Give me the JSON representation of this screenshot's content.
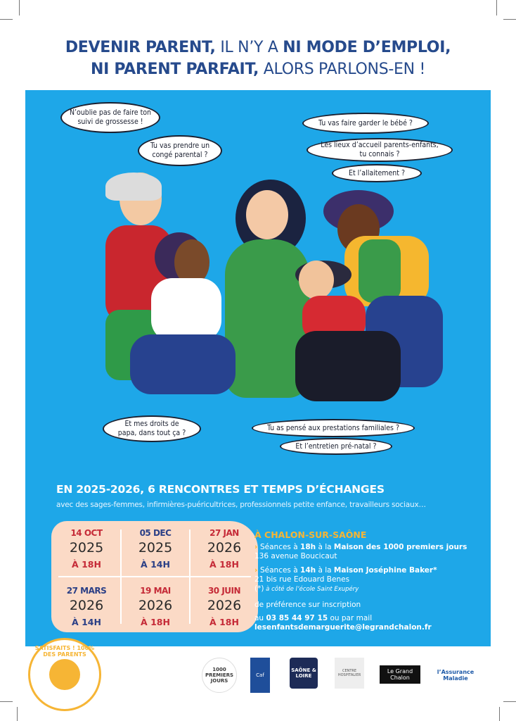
{
  "headline": {
    "line1_bold": "DEVENIR PARENT,",
    "line1_light": " IL N’Y A ",
    "line1_bold2": "NI MODE D’EMPLOI,",
    "line2_bold": "NI PARENT PARFAIT,",
    "line2_light": " ALORS PARLONS-EN !"
  },
  "colors": {
    "title": "#264a8c",
    "panel": "#1ea7e8",
    "accent": "#f6b535",
    "date_red": "#c52a37",
    "date_navy": "#2b3f86",
    "date_box": "#fbdac6"
  },
  "bubbles": [
    "N’oublie pas de faire ton suivi de grossesse !",
    "Tu vas prendre un congé parental ?",
    "Tu vas faire garder le bébé ?",
    "Les lieux d’accueil parents-enfants, tu connais ?",
    "Et l’allaitement ?",
    "Et mes droits de papa, dans tout ça ?",
    "Tu as pensé aux prestations familiales ?",
    "Et l’entretien pré-natal ?"
  ],
  "section": {
    "title": "EN 2025-2026, 6 RENCONTRES ET TEMPS D’ÉCHANGES",
    "subtitle": "avec des sages-femmes, infirmières-puéricultrices, professionnels petite enfance, travailleurs sociaux…"
  },
  "dates": [
    {
      "day": "14 OCT",
      "year": "2025",
      "time": "À 18H"
    },
    {
      "day": "05 DEC",
      "year": "2025",
      "time": "À 14H"
    },
    {
      "day": "27 JAN",
      "year": "2026",
      "time": "À 18H"
    },
    {
      "day": "27 MARS",
      "year": "2026",
      "time": "À 14H"
    },
    {
      "day": "19 MAI",
      "year": "2026",
      "time": "À 18H"
    },
    {
      "day": "30 JUIN",
      "year": "2026",
      "time": "À 18H"
    }
  ],
  "location": {
    "city": "À CHALON-SUR-SAÔNE",
    "s1_pre": "Séances à ",
    "s1_time": "18h",
    "s1_mid": " à la ",
    "s1_place": "Maison des 1000 premiers jours",
    "s1_addr": "136 avenue Boucicaut",
    "s2_pre": "Séances à ",
    "s2_time": "14h",
    "s2_mid": " à la ",
    "s2_place": "Maison Joséphine Baker*",
    "s2_addr": "21 bis rue Edouard Benes",
    "s2_note_mark": "(*)",
    "s2_note": " à côté de l’école Saint Exupéry",
    "pref": "de préférence sur inscription",
    "phone_pre": "au ",
    "phone": "03 85 44 97 15",
    "phone_post": " ou par mail",
    "email": "lesenfantsdemarguerite@legrandchalon.fr"
  },
  "badge": {
    "text": "SATISFAITS ! 100% DES PARENTS"
  },
  "logos": [
    "1000 PREMIERS JOURS",
    "Caf",
    "SAÔNE & LOIRE",
    "CENTRE HOSPITALIER",
    "Le Grand Chalon",
    "l’Assurance Maladie"
  ]
}
